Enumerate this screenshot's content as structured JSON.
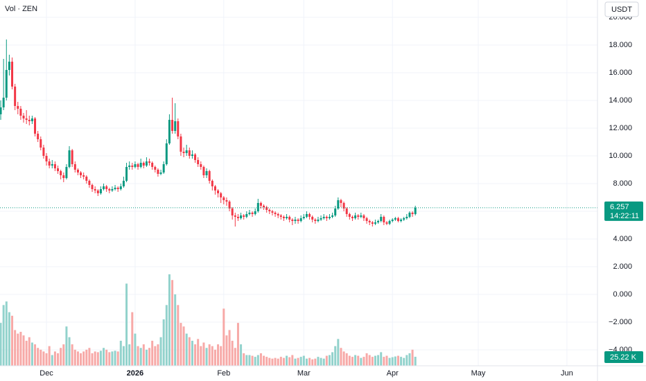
{
  "chart_data": {
    "type": "candlestick",
    "title": "Vol · ZEN",
    "currency": "USDT",
    "countdown": "14:22:11",
    "up_color": "#089981",
    "down_color": "#f23645",
    "volume_up_color": "#92d2cc",
    "volume_down_color": "#f7a9a7",
    "grid": true,
    "ylim": [
      -5.15,
      21.25
    ],
    "yticks": [
      {
        "value": 20,
        "label": "20.000"
      },
      {
        "value": 18,
        "label": "18.000"
      },
      {
        "value": 16,
        "label": "16.000"
      },
      {
        "value": 14,
        "label": "14.000"
      },
      {
        "value": 12,
        "label": "12.000"
      },
      {
        "value": 10,
        "label": "10.000"
      },
      {
        "value": 8,
        "label": "8.000"
      },
      {
        "value": 6,
        "label": "6.000"
      },
      {
        "value": 4,
        "label": "4.000"
      },
      {
        "value": 2,
        "label": "2.000"
      },
      {
        "value": 0,
        "label": "0.000"
      },
      {
        "value": -2,
        "label": "−2.000"
      },
      {
        "value": -4,
        "label": "−4.000"
      }
    ],
    "xlim": [
      -0.25,
      208.7
    ],
    "xticks": [
      {
        "value": 16,
        "label": "Dec"
      },
      {
        "value": 47,
        "label": "2026"
      },
      {
        "value": 78,
        "label": "Feb"
      },
      {
        "value": 106,
        "label": "Mar"
      },
      {
        "value": 137,
        "label": "Apr"
      },
      {
        "value": 167,
        "label": "May"
      },
      {
        "value": 198,
        "label": "Jun"
      }
    ],
    "candles": [
      [
        13.0,
        14.0,
        12.6,
        13.5
      ],
      [
        13.5,
        17.0,
        13.3,
        14.2
      ],
      [
        14.2,
        18.4,
        14.0,
        16.2
      ],
      [
        16.2,
        17.3,
        15.8,
        16.8
      ],
      [
        16.8,
        17.1,
        14.8,
        15.0
      ],
      [
        15.0,
        15.2,
        13.3,
        13.6
      ],
      [
        13.6,
        13.9,
        13.0,
        13.4
      ],
      [
        13.4,
        13.6,
        12.6,
        12.9
      ],
      [
        12.9,
        13.1,
        12.4,
        12.7
      ],
      [
        12.7,
        13.3,
        12.3,
        12.6
      ],
      [
        12.6,
        12.9,
        12.2,
        12.5
      ],
      [
        12.5,
        12.9,
        12.3,
        12.7
      ],
      [
        12.7,
        12.8,
        11.4,
        11.6
      ],
      [
        11.6,
        11.8,
        11.0,
        11.2
      ],
      [
        11.2,
        11.4,
        10.4,
        10.6
      ],
      [
        10.6,
        10.8,
        9.8,
        10.0
      ],
      [
        10.0,
        10.2,
        9.3,
        9.6
      ],
      [
        9.6,
        9.8,
        9.1,
        9.3
      ],
      [
        9.3,
        9.7,
        9.1,
        9.4
      ],
      [
        9.4,
        9.6,
        8.9,
        9.1
      ],
      [
        9.1,
        9.3,
        8.7,
        8.9
      ],
      [
        8.9,
        9.0,
        8.3,
        8.6
      ],
      [
        8.6,
        8.8,
        8.1,
        8.4
      ],
      [
        8.4,
        9.4,
        8.3,
        9.2
      ],
      [
        9.2,
        10.7,
        9.1,
        10.4
      ],
      [
        10.4,
        10.5,
        9.2,
        9.4
      ],
      [
        9.4,
        9.6,
        8.8,
        9.0
      ],
      [
        9.0,
        9.1,
        8.6,
        8.8
      ],
      [
        8.8,
        8.9,
        8.4,
        8.6
      ],
      [
        8.6,
        8.8,
        8.3,
        8.5
      ],
      [
        8.5,
        8.6,
        8.0,
        8.2
      ],
      [
        8.2,
        8.3,
        7.7,
        7.9
      ],
      [
        7.9,
        8.0,
        7.4,
        7.6
      ],
      [
        7.6,
        7.8,
        7.3,
        7.5
      ],
      [
        7.5,
        7.6,
        7.1,
        7.3
      ],
      [
        7.3,
        7.8,
        7.2,
        7.6
      ],
      [
        7.6,
        8.0,
        7.5,
        7.8
      ],
      [
        7.8,
        7.9,
        7.4,
        7.6
      ],
      [
        7.6,
        7.7,
        7.3,
        7.5
      ],
      [
        7.5,
        7.8,
        7.4,
        7.6
      ],
      [
        7.6,
        7.9,
        7.5,
        7.7
      ],
      [
        7.7,
        7.8,
        7.4,
        7.6
      ],
      [
        7.6,
        8.0,
        7.5,
        7.8
      ],
      [
        7.8,
        8.5,
        7.7,
        8.2
      ],
      [
        8.2,
        9.5,
        8.1,
        9.2
      ],
      [
        9.2,
        9.6,
        9.0,
        9.3
      ],
      [
        9.3,
        9.5,
        9.0,
        9.2
      ],
      [
        9.2,
        9.6,
        9.1,
        9.4
      ],
      [
        9.4,
        9.5,
        9.0,
        9.2
      ],
      [
        9.2,
        9.8,
        9.1,
        9.5
      ],
      [
        9.5,
        9.6,
        9.1,
        9.3
      ],
      [
        9.3,
        9.9,
        9.2,
        9.6
      ],
      [
        9.6,
        9.8,
        9.3,
        9.5
      ],
      [
        9.5,
        9.6,
        9.0,
        9.2
      ],
      [
        9.2,
        9.3,
        8.8,
        9.0
      ],
      [
        9.0,
        9.1,
        8.5,
        8.7
      ],
      [
        8.7,
        9.0,
        8.6,
        8.8
      ],
      [
        8.8,
        9.6,
        8.7,
        9.4
      ],
      [
        9.4,
        11.2,
        9.3,
        10.9
      ],
      [
        10.9,
        13.0,
        10.8,
        12.6
      ],
      [
        12.6,
        14.2,
        11.6,
        11.8
      ],
      [
        11.8,
        13.8,
        11.6,
        12.5
      ],
      [
        12.5,
        12.7,
        11.2,
        11.4
      ],
      [
        11.4,
        11.6,
        10.0,
        10.3
      ],
      [
        10.3,
        10.6,
        9.9,
        10.2
      ],
      [
        10.2,
        10.8,
        10.0,
        10.4
      ],
      [
        10.4,
        10.6,
        9.8,
        10.0
      ],
      [
        10.0,
        10.4,
        9.8,
        10.1
      ],
      [
        10.1,
        10.2,
        9.5,
        9.7
      ],
      [
        9.7,
        9.9,
        9.2,
        9.4
      ],
      [
        9.4,
        9.6,
        9.0,
        9.2
      ],
      [
        9.2,
        9.3,
        8.4,
        8.6
      ],
      [
        8.6,
        9.1,
        8.4,
        8.9
      ],
      [
        8.9,
        9.0,
        8.0,
        8.2
      ],
      [
        8.2,
        8.3,
        7.5,
        7.8
      ],
      [
        7.8,
        7.9,
        7.2,
        7.5
      ],
      [
        7.5,
        7.6,
        7.0,
        7.3
      ],
      [
        7.3,
        7.4,
        6.6,
        7.0
      ],
      [
        7.0,
        7.1,
        6.5,
        6.8
      ],
      [
        6.8,
        7.0,
        6.4,
        6.7
      ],
      [
        6.7,
        6.8,
        6.0,
        6.2
      ],
      [
        6.2,
        6.3,
        5.4,
        5.7
      ],
      [
        5.7,
        5.9,
        4.9,
        5.6
      ],
      [
        5.6,
        5.8,
        5.3,
        5.5
      ],
      [
        5.5,
        5.9,
        5.4,
        5.7
      ],
      [
        5.7,
        5.8,
        5.4,
        5.6
      ],
      [
        5.6,
        6.0,
        5.5,
        5.8
      ],
      [
        5.8,
        6.1,
        5.7,
        5.9
      ],
      [
        5.9,
        6.0,
        5.6,
        5.8
      ],
      [
        5.8,
        6.2,
        5.7,
        6.0
      ],
      [
        6.0,
        6.9,
        5.9,
        6.6
      ],
      [
        6.6,
        6.7,
        6.2,
        6.4
      ],
      [
        6.4,
        6.5,
        6.1,
        6.3
      ],
      [
        6.3,
        6.4,
        5.9,
        6.1
      ],
      [
        6.1,
        6.2,
        5.8,
        6.0
      ],
      [
        6.0,
        6.1,
        5.7,
        5.9
      ],
      [
        5.9,
        6.0,
        5.6,
        5.8
      ],
      [
        5.8,
        5.9,
        5.5,
        5.7
      ],
      [
        5.7,
        5.8,
        5.4,
        5.6
      ],
      [
        5.6,
        5.7,
        5.3,
        5.5
      ],
      [
        5.5,
        5.8,
        5.4,
        5.6
      ],
      [
        5.6,
        5.7,
        5.2,
        5.4
      ],
      [
        5.4,
        5.5,
        5.0,
        5.3
      ],
      [
        5.3,
        5.6,
        5.1,
        5.4
      ],
      [
        5.4,
        5.5,
        5.1,
        5.3
      ],
      [
        5.3,
        5.7,
        5.2,
        5.5
      ],
      [
        5.5,
        5.8,
        5.4,
        5.6
      ],
      [
        5.6,
        6.0,
        5.5,
        5.8
      ],
      [
        5.8,
        5.9,
        5.4,
        5.6
      ],
      [
        5.6,
        5.7,
        5.2,
        5.4
      ],
      [
        5.4,
        5.5,
        5.1,
        5.3
      ],
      [
        5.3,
        5.6,
        5.2,
        5.4
      ],
      [
        5.4,
        5.7,
        5.3,
        5.5
      ],
      [
        5.5,
        5.8,
        5.4,
        5.6
      ],
      [
        5.6,
        5.7,
        5.3,
        5.5
      ],
      [
        5.5,
        5.8,
        5.4,
        5.6
      ],
      [
        5.6,
        5.9,
        5.5,
        5.7
      ],
      [
        5.7,
        6.4,
        5.6,
        6.2
      ],
      [
        6.2,
        7.0,
        6.1,
        6.8
      ],
      [
        6.8,
        6.9,
        6.3,
        6.6
      ],
      [
        6.6,
        6.7,
        6.0,
        6.2
      ],
      [
        6.2,
        6.3,
        5.6,
        5.8
      ],
      [
        5.8,
        5.9,
        5.4,
        5.6
      ],
      [
        5.6,
        5.7,
        5.3,
        5.5
      ],
      [
        5.5,
        5.9,
        5.4,
        5.7
      ],
      [
        5.7,
        5.8,
        5.4,
        5.6
      ],
      [
        5.6,
        5.9,
        5.5,
        5.7
      ],
      [
        5.7,
        5.8,
        5.3,
        5.5
      ],
      [
        5.5,
        5.6,
        5.1,
        5.3
      ],
      [
        5.3,
        5.4,
        5.0,
        5.2
      ],
      [
        5.2,
        5.3,
        4.9,
        5.1
      ],
      [
        5.1,
        5.4,
        5.0,
        5.2
      ],
      [
        5.2,
        5.4,
        5.1,
        5.3
      ],
      [
        5.3,
        5.8,
        5.2,
        5.6
      ],
      [
        5.6,
        5.7,
        5.0,
        5.2
      ],
      [
        5.2,
        5.3,
        5.0,
        5.1
      ],
      [
        5.1,
        5.4,
        5.0,
        5.3
      ],
      [
        5.3,
        5.5,
        5.2,
        5.4
      ],
      [
        5.4,
        5.6,
        5.3,
        5.5
      ],
      [
        5.5,
        5.6,
        5.2,
        5.3
      ],
      [
        5.3,
        5.5,
        5.2,
        5.4
      ],
      [
        5.4,
        5.6,
        5.3,
        5.5
      ],
      [
        5.5,
        5.8,
        5.4,
        5.6
      ],
      [
        5.6,
        6.0,
        5.5,
        5.9
      ],
      [
        5.9,
        6.0,
        5.6,
        5.8
      ],
      [
        5.8,
        6.4,
        5.7,
        6.257
      ]
    ],
    "volume": {
      "values": [
        120,
        170,
        180,
        150,
        140,
        100,
        90,
        95,
        85,
        70,
        80,
        65,
        60,
        50,
        45,
        40,
        35,
        55,
        30,
        40,
        35,
        50,
        60,
        110,
        80,
        60,
        45,
        40,
        35,
        40,
        45,
        50,
        35,
        40,
        38,
        42,
        50,
        45,
        38,
        40,
        42,
        40,
        70,
        55,
        230,
        60,
        150,
        90,
        55,
        50,
        60,
        45,
        50,
        70,
        55,
        60,
        80,
        130,
        170,
        256,
        240,
        200,
        170,
        120,
        110,
        90,
        80,
        70,
        60,
        75,
        55,
        65,
        50,
        60,
        55,
        45,
        60,
        55,
        160,
        85,
        100,
        70,
        50,
        120,
        60,
        35,
        30,
        30,
        28,
        25,
        30,
        35,
        28,
        25,
        22,
        20,
        22,
        20,
        25,
        22,
        28,
        24,
        30,
        20,
        22,
        25,
        28,
        20,
        22,
        18,
        20,
        25,
        22,
        20,
        28,
        30,
        38,
        55,
        75,
        50,
        40,
        35,
        28,
        25,
        30,
        28,
        22,
        25,
        35,
        30,
        25,
        28,
        30,
        38,
        25,
        28,
        22,
        24,
        26,
        28,
        25,
        22,
        30,
        35,
        45,
        25.22
      ],
      "last_label": "25.22 K"
    }
  }
}
